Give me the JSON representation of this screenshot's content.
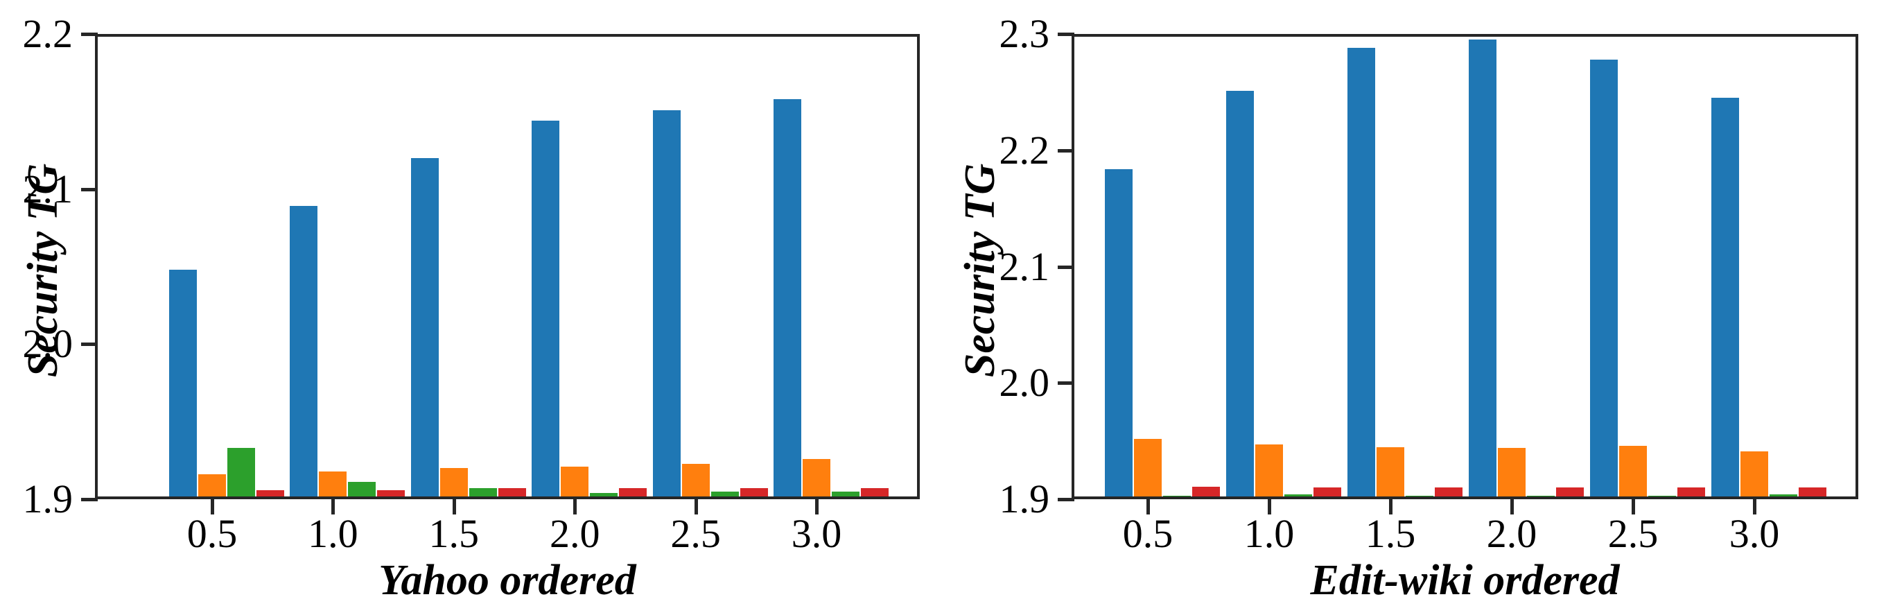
{
  "figure": {
    "background": "#ffffff",
    "axis_color": "#262626",
    "text_color": "#000000"
  },
  "chart_data": [
    {
      "id": "yahoo-ordered",
      "type": "bar",
      "title": "",
      "xlabel": "Yahoo ordered",
      "ylabel": "Security TG",
      "categories": [
        "0.5",
        "1.0",
        "1.5",
        "2.0",
        "2.5",
        "3.0"
      ],
      "ylim": [
        1.9,
        2.2
      ],
      "ytick_labels": [
        "1.9",
        "2.0",
        "2.1",
        "2.2"
      ],
      "grid": false,
      "legend": "none",
      "series": [
        {
          "name": "blue",
          "color": "#1f77b4",
          "values": [
            2.048,
            2.089,
            2.12,
            2.144,
            2.151,
            2.158
          ]
        },
        {
          "name": "orange",
          "color": "#ff7f0e",
          "values": [
            1.916,
            1.918,
            1.92,
            1.921,
            1.923,
            1.926
          ]
        },
        {
          "name": "green",
          "color": "#2ca02c",
          "values": [
            1.933,
            1.911,
            1.907,
            1.904,
            1.905,
            1.905
          ]
        },
        {
          "name": "red",
          "color": "#d62728",
          "values": [
            1.906,
            1.906,
            1.907,
            1.907,
            1.907,
            1.907
          ]
        }
      ]
    },
    {
      "id": "edit-wiki-ordered",
      "type": "bar",
      "title": "",
      "xlabel": "Edit-wiki ordered",
      "ylabel": "Security TG",
      "categories": [
        "0.5",
        "1.0",
        "1.5",
        "2.0",
        "2.5",
        "3.0"
      ],
      "ylim": [
        1.9,
        2.3
      ],
      "ytick_labels": [
        "1.9",
        "2.0",
        "2.1",
        "2.2",
        "2.3"
      ],
      "grid": false,
      "legend": "none",
      "series": [
        {
          "name": "blue",
          "color": "#1f77b4",
          "values": [
            2.184,
            2.251,
            2.288,
            2.295,
            2.278,
            2.245
          ]
        },
        {
          "name": "orange",
          "color": "#ff7f0e",
          "values": [
            1.952,
            1.947,
            1.945,
            1.944,
            1.946,
            1.941
          ]
        },
        {
          "name": "green",
          "color": "#2ca02c",
          "values": [
            1.903,
            1.904,
            1.903,
            1.903,
            1.903,
            1.904
          ]
        },
        {
          "name": "red",
          "color": "#d62728",
          "values": [
            1.911,
            1.91,
            1.91,
            1.91,
            1.91,
            1.91
          ]
        }
      ]
    }
  ]
}
